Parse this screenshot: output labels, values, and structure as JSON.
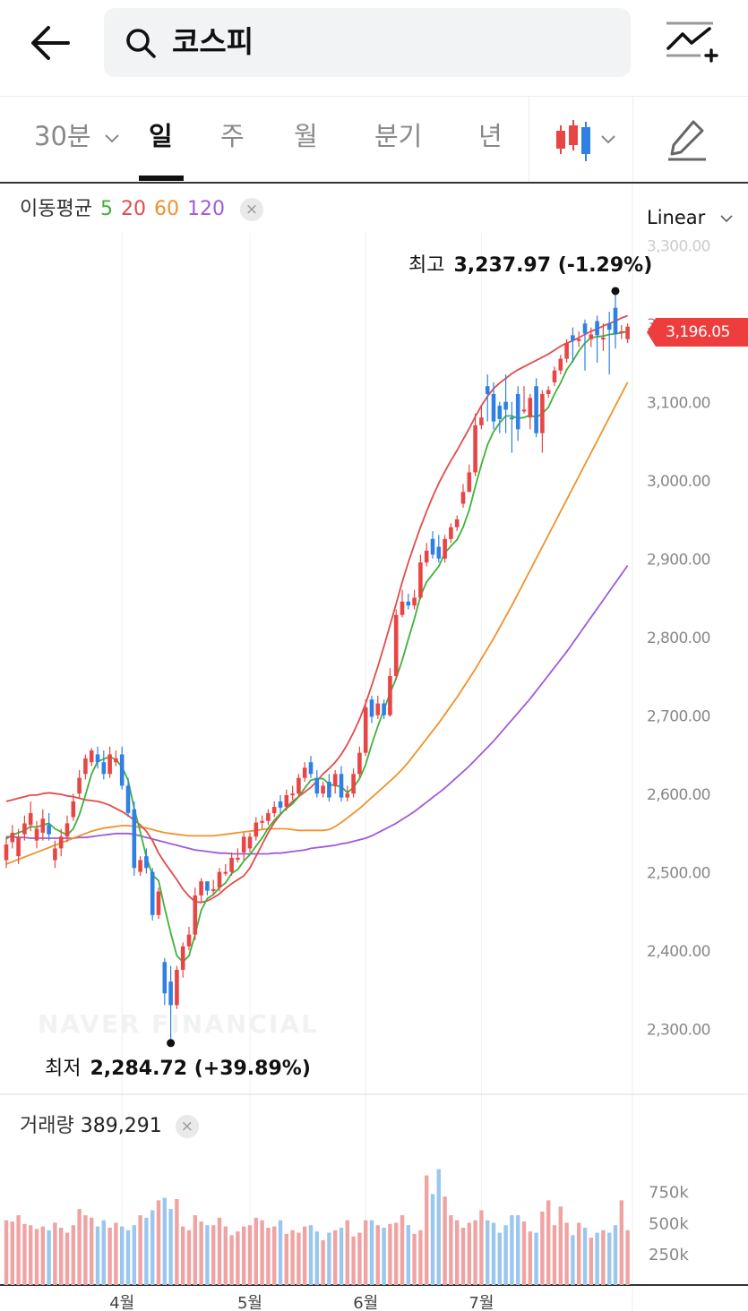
{
  "header": {
    "search_text": "코스피",
    "icons": {
      "back": "back-arrow-icon",
      "search": "search-icon",
      "compare": "compare-chart-icon"
    }
  },
  "tabs": [
    {
      "label": "30분",
      "active": false,
      "has_dropdown": true
    },
    {
      "label": "일",
      "active": true
    },
    {
      "label": "주",
      "active": false
    },
    {
      "label": "월",
      "active": false
    },
    {
      "label": "분기",
      "active": false
    },
    {
      "label": "년",
      "active": false
    }
  ],
  "toolbar": {
    "candle_icon": "candlestick-type-icon",
    "draw_icon": "pencil-icon"
  },
  "legend": {
    "title": "이동평균",
    "periods": [
      {
        "label": "5",
        "color": "#3fb23a"
      },
      {
        "label": "20",
        "color": "#e34b4b"
      },
      {
        "label": "60",
        "color": "#f0922c"
      },
      {
        "label": "120",
        "color": "#a05bd8"
      }
    ],
    "close": "×"
  },
  "scale": {
    "label": "Linear"
  },
  "current_price": {
    "label": "3,196.05",
    "color": "#ee3d3d"
  },
  "high": {
    "title": "최고",
    "value": "3,237.97 (-1.29%)"
  },
  "low": {
    "title": "최저",
    "value": "2,284.72 (+39.89%)"
  },
  "watermark": "NAVER FINANCIAL",
  "volume": {
    "title": "거래량",
    "value": "389,291",
    "close": "×"
  },
  "colors": {
    "up": "#e84545",
    "down": "#2f80e4",
    "up_vol": "#f0a3a3",
    "down_vol": "#9bc6ee"
  },
  "chart_data": {
    "type": "candlestick",
    "y_range": [
      2215,
      3310
    ],
    "y_ticks": [
      {
        "value": 3300,
        "label": "3,300.00"
      },
      {
        "value": 3200,
        "label": "3,200.00"
      },
      {
        "value": 3100,
        "label": "3,100.00"
      },
      {
        "value": 3000,
        "label": "3,000.00"
      },
      {
        "value": 2900,
        "label": "2,900.00"
      },
      {
        "value": 2800,
        "label": "2,800.00"
      },
      {
        "value": 2700,
        "label": "2,700.00"
      },
      {
        "value": 2600,
        "label": "2,600.00"
      },
      {
        "value": 2500,
        "label": "2,500.00"
      },
      {
        "value": 2400,
        "label": "2,400.00"
      },
      {
        "value": 2300,
        "label": "2,300.00"
      }
    ],
    "x_ticks": [
      {
        "index": 19,
        "label": "4월"
      },
      {
        "index": 40,
        "label": "5월"
      },
      {
        "index": 59,
        "label": "6월"
      },
      {
        "index": 78,
        "label": "7월"
      }
    ],
    "close": [
      2535,
      2550,
      2545,
      2562,
      2575,
      2555,
      2568,
      2548,
      2530,
      2545,
      2562,
      2590,
      2620,
      2645,
      2655,
      2640,
      2625,
      2650,
      2645,
      2610,
      2575,
      2505,
      2515,
      2505,
      2445,
      2475,
      2345,
      2330,
      2375,
      2405,
      2420,
      2470,
      2488,
      2476,
      2478,
      2500,
      2500,
      2518,
      2518,
      2545,
      2545,
      2563,
      2565,
      2575,
      2583,
      2582,
      2598,
      2600,
      2620,
      2633,
      2625,
      2600,
      2610,
      2595,
      2625,
      2595,
      2600,
      2625,
      2652,
      2710,
      2698,
      2715,
      2700,
      2750,
      2828,
      2845,
      2840,
      2850,
      2895,
      2910,
      2905,
      2900,
      2925,
      2940,
      2950,
      2985,
      3010,
      3070,
      3080,
      3110,
      3075,
      3078,
      3090,
      3078,
      3065,
      3090,
      3105,
      3060,
      3110,
      3115,
      3140,
      3155,
      3175,
      3178,
      3180,
      3187,
      3186,
      3185,
      3182,
      3192,
      3186,
      3190,
      3196
    ],
    "open": [
      2515,
      2538,
      2520,
      2548,
      2560,
      2540,
      2550,
      2560,
      2515,
      2530,
      2545,
      2570,
      2600,
      2625,
      2640,
      2650,
      2640,
      2625,
      2640,
      2650,
      2610,
      2580,
      2500,
      2520,
      2500,
      2445,
      2385,
      2360,
      2330,
      2375,
      2405,
      2420,
      2470,
      2488,
      2476,
      2480,
      2500,
      2500,
      2518,
      2525,
      2530,
      2545,
      2563,
      2565,
      2575,
      2590,
      2583,
      2598,
      2600,
      2620,
      2640,
      2620,
      2600,
      2615,
      2610,
      2625,
      2595,
      2600,
      2625,
      2652,
      2720,
      2700,
      2715,
      2700,
      2750,
      2828,
      2845,
      2840,
      2850,
      2895,
      2925,
      2915,
      2900,
      2925,
      2940,
      2970,
      2985,
      3010,
      3070,
      3120,
      3110,
      3095,
      3100,
      3080,
      3110,
      3090,
      3080,
      3120,
      3060,
      3110,
      3125,
      3140,
      3155,
      3185,
      3178,
      3200,
      3180,
      3203,
      3182,
      3200,
      3220,
      3190,
      3180
    ],
    "high": [
      2545,
      2560,
      2555,
      2572,
      2590,
      2565,
      2580,
      2575,
      2540,
      2555,
      2572,
      2600,
      2630,
      2650,
      2658,
      2660,
      2655,
      2660,
      2655,
      2660,
      2620,
      2590,
      2520,
      2530,
      2505,
      2480,
      2390,
      2380,
      2380,
      2410,
      2430,
      2480,
      2492,
      2485,
      2490,
      2505,
      2510,
      2525,
      2530,
      2550,
      2550,
      2570,
      2572,
      2580,
      2590,
      2598,
      2605,
      2610,
      2625,
      2640,
      2648,
      2630,
      2615,
      2625,
      2630,
      2635,
      2610,
      2632,
      2660,
      2720,
      2725,
      2725,
      2720,
      2760,
      2835,
      2860,
      2855,
      2860,
      2905,
      2920,
      2935,
      2930,
      2930,
      2945,
      2955,
      2995,
      3020,
      3085,
      3095,
      3135,
      3125,
      3100,
      3135,
      3100,
      3120,
      3120,
      3110,
      3130,
      3115,
      3120,
      3145,
      3160,
      3180,
      3195,
      3190,
      3205,
      3195,
      3210,
      3200,
      3215,
      3238,
      3198,
      3200
    ],
    "low": [
      2505,
      2530,
      2510,
      2540,
      2552,
      2530,
      2540,
      2540,
      2505,
      2520,
      2538,
      2565,
      2595,
      2618,
      2635,
      2632,
      2618,
      2620,
      2635,
      2605,
      2570,
      2495,
      2495,
      2498,
      2438,
      2440,
      2330,
      2285,
      2325,
      2365,
      2400,
      2413,
      2462,
      2470,
      2470,
      2475,
      2495,
      2495,
      2512,
      2515,
      2525,
      2540,
      2555,
      2560,
      2570,
      2575,
      2578,
      2592,
      2595,
      2615,
      2620,
      2595,
      2595,
      2590,
      2600,
      2590,
      2590,
      2595,
      2620,
      2648,
      2690,
      2695,
      2695,
      2698,
      2745,
      2825,
      2835,
      2835,
      2848,
      2890,
      2900,
      2895,
      2895,
      2920,
      2935,
      2965,
      2985,
      3005,
      3065,
      3075,
      3065,
      3060,
      3060,
      3035,
      3050,
      3085,
      3065,
      3055,
      3035,
      3105,
      3120,
      3135,
      3150,
      3150,
      3170,
      3140,
      3170,
      3150,
      3165,
      3135,
      3168,
      3180,
      3175
    ],
    "volume": [
      520,
      510,
      560,
      490,
      480,
      450,
      470,
      440,
      500,
      460,
      420,
      480,
      610,
      560,
      540,
      470,
      520,
      460,
      500,
      470,
      440,
      480,
      560,
      540,
      600,
      680,
      700,
      610,
      690,
      470,
      440,
      560,
      510,
      480,
      480,
      540,
      470,
      400,
      430,
      470,
      480,
      540,
      520,
      460,
      470,
      520,
      410,
      440,
      420,
      470,
      480,
      430,
      360,
      420,
      440,
      460,
      520,
      390,
      420,
      520,
      520,
      480,
      460,
      490,
      500,
      560,
      480,
      410,
      440,
      880,
      730,
      930,
      710,
      560,
      520,
      460,
      500,
      520,
      600,
      520,
      500,
      420,
      480,
      560,
      560,
      510,
      430,
      420,
      590,
      680,
      480,
      630,
      500,
      400,
      500,
      460,
      380,
      420,
      440,
      420,
      480,
      680,
      440
    ],
    "ma5": [
      2542,
      2547,
      2550,
      2553,
      2558,
      2557,
      2560,
      2562,
      2555,
      2551,
      2547,
      2555,
      2573,
      2598,
      2625,
      2641,
      2644,
      2647,
      2643,
      2634,
      2617,
      2581,
      2551,
      2519,
      2496,
      2489,
      2454,
      2422,
      2393,
      2385,
      2393,
      2420,
      2451,
      2466,
      2471,
      2480,
      2486,
      2498,
      2503,
      2514,
      2522,
      2533,
      2543,
      2556,
      2566,
      2574,
      2581,
      2587,
      2596,
      2607,
      2617,
      2619,
      2619,
      2612,
      2610,
      2609,
      2601,
      2608,
      2619,
      2637,
      2663,
      2686,
      2707,
      2728,
      2747,
      2770,
      2797,
      2823,
      2852,
      2870,
      2880,
      2890,
      2907,
      2916,
      2924,
      2940,
      2962,
      2992,
      3020,
      3045,
      3062,
      3073,
      3082,
      3082,
      3079,
      3080,
      3083,
      3080,
      3085,
      3093,
      3110,
      3124,
      3141,
      3152,
      3165,
      3175,
      3182,
      3183,
      3184,
      3186,
      3187,
      3188,
      3190
    ],
    "ma20": [
      2590,
      2592,
      2594,
      2596,
      2598,
      2598,
      2600,
      2601,
      2600,
      2599,
      2597,
      2596,
      2594,
      2592,
      2591,
      2590,
      2588,
      2585,
      2581,
      2577,
      2572,
      2566,
      2560,
      2552,
      2540,
      2524,
      2512,
      2501,
      2490,
      2478,
      2469,
      2462,
      2461,
      2463,
      2467,
      2472,
      2479,
      2485,
      2490,
      2495,
      2505,
      2520,
      2535,
      2550,
      2563,
      2573,
      2582,
      2590,
      2596,
      2602,
      2608,
      2616,
      2625,
      2632,
      2640,
      2650,
      2663,
      2678,
      2695,
      2715,
      2738,
      2762,
      2788,
      2815,
      2842,
      2870,
      2895,
      2918,
      2940,
      2960,
      2979,
      2996,
      3011,
      3025,
      3038,
      3052,
      3066,
      3081,
      3095,
      3107,
      3117,
      3124,
      3130,
      3136,
      3141,
      3145,
      3149,
      3153,
      3157,
      3161,
      3166,
      3171,
      3175,
      3178,
      3182,
      3186,
      3190,
      3193,
      3197,
      3200,
      3203,
      3207,
      3210
    ],
    "ma60": [
      2510,
      2513,
      2516,
      2519,
      2522,
      2525,
      2528,
      2531,
      2534,
      2537,
      2540,
      2543,
      2546,
      2549,
      2552,
      2554,
      2556,
      2557,
      2558,
      2559,
      2559,
      2558,
      2557,
      2556,
      2554,
      2552,
      2550,
      2549,
      2548,
      2547,
      2546,
      2546,
      2546,
      2546,
      2546,
      2547,
      2548,
      2549,
      2550,
      2551,
      2552,
      2553,
      2554,
      2555,
      2555,
      2555,
      2555,
      2554,
      2553,
      2553,
      2553,
      2553,
      2553,
      2554,
      2558,
      2563,
      2569,
      2575,
      2581,
      2588,
      2595,
      2602,
      2609,
      2616,
      2623,
      2631,
      2640,
      2650,
      2660,
      2670,
      2680,
      2690,
      2701,
      2712,
      2723,
      2735,
      2747,
      2759,
      2772,
      2785,
      2798,
      2812,
      2826,
      2840,
      2855,
      2870,
      2885,
      2900,
      2915,
      2930,
      2945,
      2960,
      2975,
      2990,
      3005,
      3020,
      3035,
      3050,
      3065,
      3080,
      3095,
      3110,
      3125
    ],
    "ma120": [
      2545,
      2545,
      2544,
      2544,
      2543,
      2543,
      2543,
      2543,
      2543,
      2543,
      2543,
      2543,
      2544,
      2544,
      2545,
      2546,
      2547,
      2548,
      2549,
      2549,
      2549,
      2548,
      2546,
      2544,
      2542,
      2540,
      2538,
      2536,
      2534,
      2532,
      2530,
      2528,
      2527,
      2526,
      2525,
      2524,
      2524,
      2523,
      2523,
      2523,
      2523,
      2523,
      2523,
      2523,
      2524,
      2524,
      2525,
      2526,
      2527,
      2528,
      2530,
      2531,
      2532,
      2533,
      2534,
      2536,
      2537,
      2539,
      2541,
      2543,
      2546,
      2550,
      2554,
      2558,
      2562,
      2567,
      2572,
      2577,
      2583,
      2589,
      2595,
      2601,
      2607,
      2614,
      2621,
      2628,
      2635,
      2643,
      2651,
      2659,
      2667,
      2676,
      2685,
      2694,
      2703,
      2712,
      2721,
      2731,
      2741,
      2751,
      2761,
      2771,
      2781,
      2792,
      2803,
      2814,
      2825,
      2836,
      2847,
      2858,
      2869,
      2880,
      2891
    ],
    "volume_ticks": [
      {
        "value": 750,
        "label": "750k"
      },
      {
        "value": 500,
        "label": "500k"
      },
      {
        "value": 250,
        "label": "250k"
      }
    ]
  }
}
